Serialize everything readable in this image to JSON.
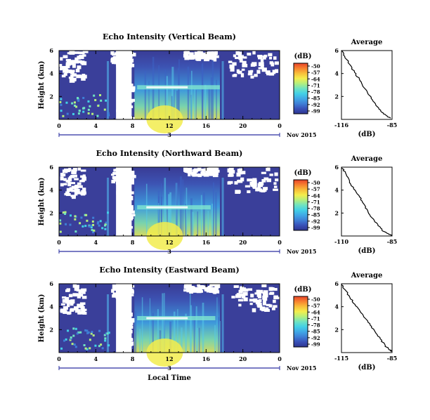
{
  "colors": {
    "background": "#3a3f9a",
    "colorbar": [
      "#2f3590",
      "#3950b8",
      "#3f7fd6",
      "#41a8e6",
      "#43d0e6",
      "#6fe3c1",
      "#b5ef7d",
      "#f4ee4d",
      "#f8bf3a",
      "#f7822f",
      "#e8432a"
    ]
  },
  "chart_data": [
    {
      "type": "heatmap",
      "title": "Echo Intensity (Vertical Beam)",
      "ylabel": "Height (km)",
      "x_ticks": [
        "0",
        "4",
        "8",
        "12",
        "16",
        "20",
        "0"
      ],
      "y_ticks": [
        "6",
        "4",
        "2"
      ],
      "xlim": [
        0,
        24
      ],
      "ylim": [
        0,
        6
      ],
      "date_day": "3",
      "date_label": "Nov 2015",
      "colorbar": {
        "unit": "(dB)",
        "ticks": [
          "-50",
          "-57",
          "-64",
          "-71",
          "-78",
          "-85",
          "-92",
          "-99"
        ]
      },
      "features": {
        "bright_layer_height_km": 2.8,
        "bright_layer_hours": [
          8.5,
          17.5
        ],
        "convective_band_hours": [
          8.2,
          17.5
        ]
      },
      "profile": {
        "title": "Average",
        "xlabel": "(dB)",
        "x_ticks": [
          "-116",
          "-85"
        ],
        "xlim": [
          -116,
          -85
        ],
        "y_ticks": [
          "6",
          "4",
          "2"
        ],
        "ylim": [
          0,
          6
        ],
        "points": [
          [
            -116,
            6.0
          ],
          [
            -114,
            5.5
          ],
          [
            -111,
            4.8
          ],
          [
            -108,
            4.1
          ],
          [
            -105,
            3.5
          ],
          [
            -103,
            2.9
          ],
          [
            -100,
            2.3
          ],
          [
            -97,
            1.7
          ],
          [
            -94,
            1.1
          ],
          [
            -91,
            0.6
          ],
          [
            -88,
            0.3
          ],
          [
            -86,
            0.1
          ]
        ]
      }
    },
    {
      "type": "heatmap",
      "title": "Echo Intensity (Northward Beam)",
      "ylabel": "Height (km)",
      "x_ticks": [
        "0",
        "4",
        "8",
        "12",
        "16",
        "20",
        "0"
      ],
      "y_ticks": [
        "6",
        "4",
        "2"
      ],
      "xlim": [
        0,
        24
      ],
      "ylim": [
        0,
        6
      ],
      "date_day": "3",
      "date_label": "Nov 2015",
      "colorbar": {
        "unit": "(dB)",
        "ticks": [
          "-50",
          "-57",
          "-64",
          "-71",
          "-78",
          "-85",
          "-92",
          "-99"
        ]
      },
      "features": {
        "bright_layer_height_km": 2.5,
        "bright_layer_hours": [
          8.5,
          16.5
        ],
        "convective_band_hours": [
          8.2,
          17.5
        ]
      },
      "profile": {
        "title": "Average",
        "xlabel": "(dB)",
        "x_ticks": [
          "-110",
          "-85"
        ],
        "xlim": [
          -110,
          -85
        ],
        "y_ticks": [
          "6",
          "4",
          "2"
        ],
        "ylim": [
          0,
          6
        ],
        "points": [
          [
            -110,
            6.0
          ],
          [
            -108,
            5.5
          ],
          [
            -106,
            4.8
          ],
          [
            -104,
            4.1
          ],
          [
            -101,
            3.4
          ],
          [
            -99,
            2.8
          ],
          [
            -97,
            2.2
          ],
          [
            -95,
            1.6
          ],
          [
            -92,
            1.0
          ],
          [
            -90,
            0.5
          ],
          [
            -87,
            0.2
          ],
          [
            -85,
            0.05
          ]
        ]
      }
    },
    {
      "type": "heatmap",
      "title": "Echo Intensity (Eastward Beam)",
      "ylabel": "Height (km)",
      "x_ticks": [
        "0",
        "4",
        "8",
        "12",
        "16",
        "20",
        "0"
      ],
      "y_ticks": [
        "6",
        "4",
        "2"
      ],
      "xlim": [
        0,
        24
      ],
      "ylim": [
        0,
        6
      ],
      "date_day": "3",
      "date_label": "Nov 2015",
      "xlabel": "Local Time",
      "colorbar": {
        "unit": "(dB)",
        "ticks": [
          "-50",
          "-57",
          "-64",
          "-71",
          "-78",
          "-85",
          "-92",
          "-99"
        ]
      },
      "features": {
        "bright_layer_height_km": 3.0,
        "bright_layer_hours": [
          8.5,
          17.0
        ],
        "convective_band_hours": [
          8.2,
          17.5
        ]
      },
      "profile": {
        "title": "Average",
        "xlabel": "(dB)",
        "x_ticks": [
          "-115",
          "-85"
        ],
        "xlim": [
          -115,
          -85
        ],
        "y_ticks": [
          "6",
          "4",
          "2"
        ],
        "ylim": [
          0,
          6
        ],
        "points": [
          [
            -115,
            6.0
          ],
          [
            -113,
            5.5
          ],
          [
            -110,
            4.8
          ],
          [
            -107,
            4.2
          ],
          [
            -104,
            3.6
          ],
          [
            -101,
            3.0
          ],
          [
            -98,
            2.4
          ],
          [
            -95,
            1.8
          ],
          [
            -92,
            1.2
          ],
          [
            -89,
            0.6
          ],
          [
            -87,
            0.3
          ],
          [
            -85,
            0.1
          ]
        ]
      }
    }
  ]
}
